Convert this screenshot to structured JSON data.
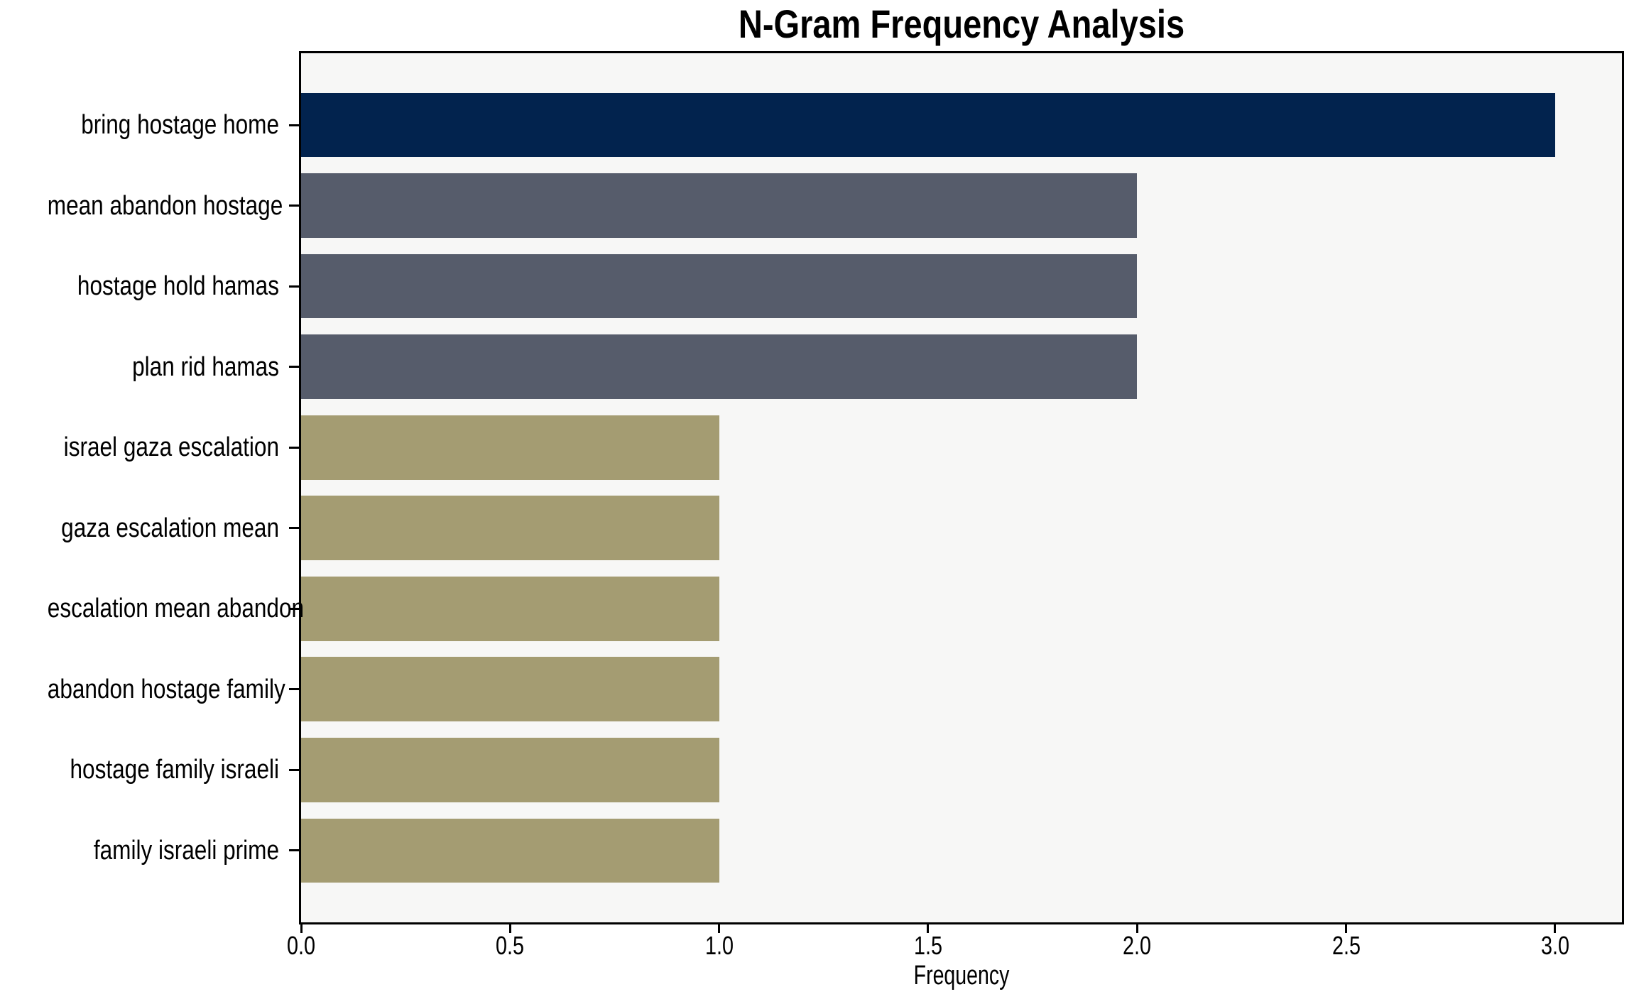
{
  "chart_data": {
    "type": "bar",
    "orientation": "horizontal",
    "title": "N-Gram Frequency Analysis",
    "xlabel": "Frequency",
    "ylabel": "",
    "categories": [
      "bring hostage home",
      "mean abandon hostage",
      "hostage hold hamas",
      "plan rid hamas",
      "israel gaza escalation",
      "gaza escalation mean",
      "escalation mean abandon",
      "abandon hostage family",
      "hostage family israeli",
      "family israeli prime"
    ],
    "values": [
      3,
      2,
      2,
      2,
      1,
      1,
      1,
      1,
      1,
      1
    ],
    "bar_colors": [
      "#02234E",
      "#565C6B",
      "#565C6B",
      "#565C6B",
      "#A49C72",
      "#A49C72",
      "#A49C72",
      "#A49C72",
      "#A49C72",
      "#A49C72"
    ],
    "palette": {
      "navy": "#02234E",
      "slate_gray": "#565C6B",
      "olive": "#A49C72"
    },
    "xlim": [
      0,
      3.16
    ],
    "xticks": [
      0,
      0.5,
      1,
      1.5,
      2,
      2.5,
      3
    ],
    "xtick_labels": [
      "0.0",
      "0.5",
      "1.0",
      "1.5",
      "2.0",
      "2.5",
      "3.0"
    ],
    "grid": false,
    "legend": "none",
    "plot_background": "#F7F7F6",
    "figure_background": "#FFFFFF",
    "axis_color": "#000000",
    "text_color": "#000000"
  }
}
